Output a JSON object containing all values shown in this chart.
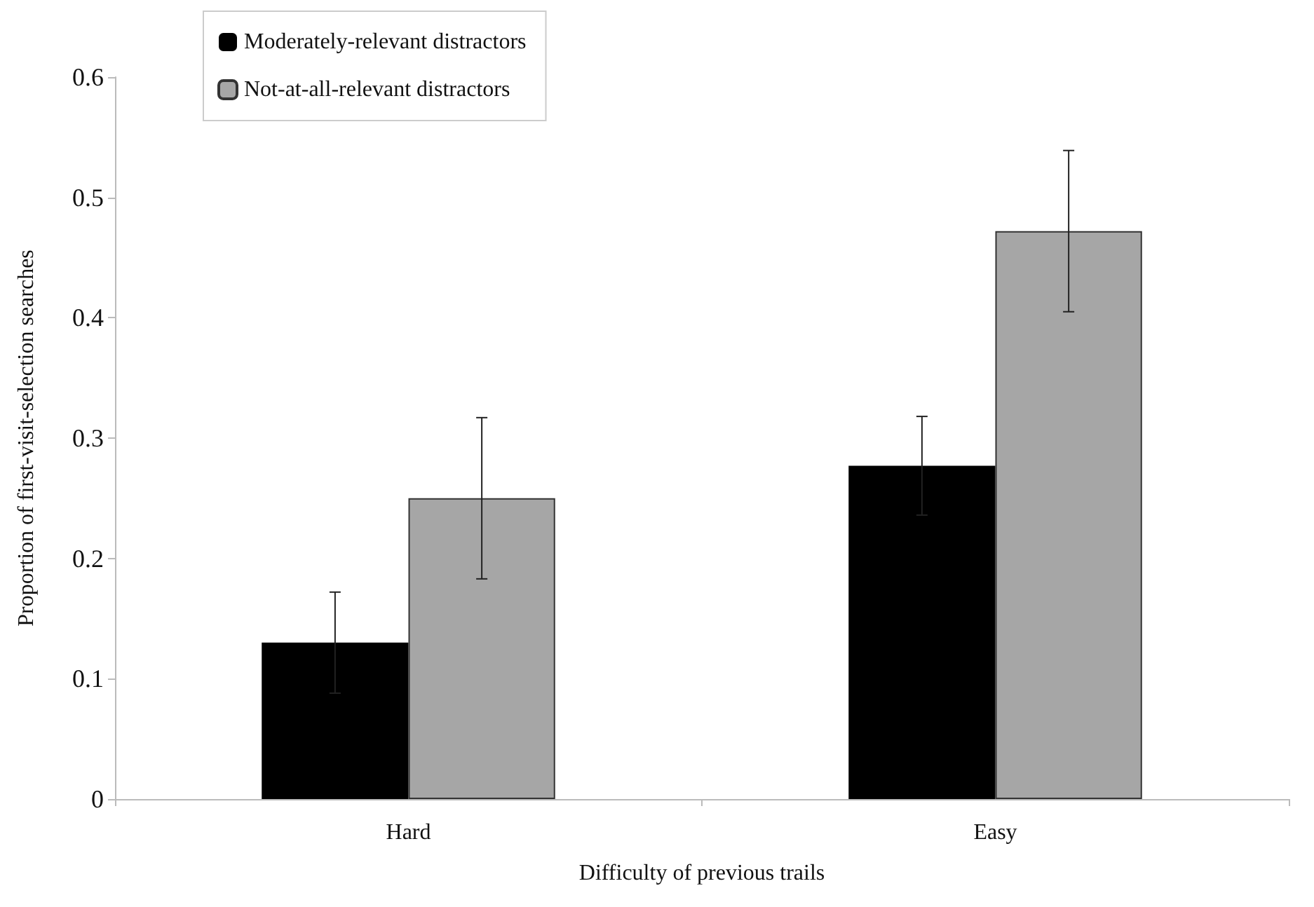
{
  "chart_data": {
    "type": "bar",
    "xlabel": "Difficulty of previous trails",
    "ylabel": "Proportion of first-visit-selection searches",
    "categories": [
      "Hard",
      "Easy"
    ],
    "series": [
      {
        "name": "Moderately-relevant distractors",
        "color": "#000000",
        "values": [
          0.13,
          0.277
        ],
        "errors": [
          0.042,
          0.041
        ]
      },
      {
        "name": "Not-at-all-relevant distractors",
        "color": "#a6a6a6",
        "values": [
          0.25,
          0.472
        ],
        "errors": [
          0.067,
          0.067
        ]
      }
    ],
    "ylim": [
      0,
      0.6
    ],
    "yticks": [
      0,
      0.1,
      0.2,
      0.3,
      0.4,
      0.5,
      0.6
    ],
    "grid": false,
    "legend": "top left"
  }
}
